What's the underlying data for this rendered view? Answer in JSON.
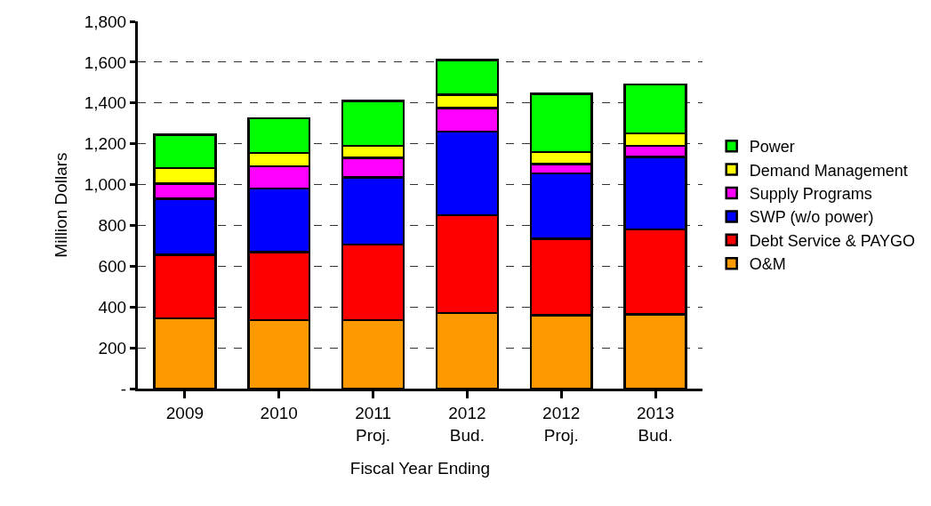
{
  "chart_data": {
    "type": "bar",
    "stacked": true,
    "xlabel": "Fiscal Year Ending",
    "ylabel": "Million Dollars",
    "categories": [
      "2009",
      "2010",
      "2011 Proj.",
      "2012 Bud.",
      "2012 Proj.",
      "2013 Bud."
    ],
    "series": [
      {
        "name": "O&M",
        "color": "#ff9900",
        "values": [
          345,
          335,
          335,
          370,
          360,
          365
        ]
      },
      {
        "name": "Debt Service & PAYGO",
        "color": "#ff0000",
        "values": [
          310,
          335,
          370,
          480,
          375,
          415
        ]
      },
      {
        "name": "SWP (w/o power)",
        "color": "#0000ff",
        "values": [
          275,
          310,
          330,
          410,
          320,
          355
        ]
      },
      {
        "name": "Supply Programs",
        "color": "#ff00ff",
        "values": [
          75,
          110,
          95,
          115,
          45,
          55
        ]
      },
      {
        "name": "Demand Management",
        "color": "#ffff00",
        "values": [
          75,
          65,
          60,
          65,
          60,
          60
        ]
      },
      {
        "name": "Power",
        "color": "#00ff00",
        "values": [
          165,
          170,
          220,
          170,
          285,
          240
        ]
      }
    ],
    "ylim": [
      0,
      1800
    ],
    "yticks": [
      {
        "value": 0,
        "label": "-"
      },
      {
        "value": 200,
        "label": "200"
      },
      {
        "value": 400,
        "label": "400"
      },
      {
        "value": 600,
        "label": "600"
      },
      {
        "value": 800,
        "label": "800"
      },
      {
        "value": 1000,
        "label": "1,000"
      },
      {
        "value": 1200,
        "label": "1,200"
      },
      {
        "value": 1400,
        "label": "1,400"
      },
      {
        "value": 1600,
        "label": "1,600"
      },
      {
        "value": 1800,
        "label": "1,800"
      }
    ],
    "grid": "y",
    "legend": "right"
  }
}
